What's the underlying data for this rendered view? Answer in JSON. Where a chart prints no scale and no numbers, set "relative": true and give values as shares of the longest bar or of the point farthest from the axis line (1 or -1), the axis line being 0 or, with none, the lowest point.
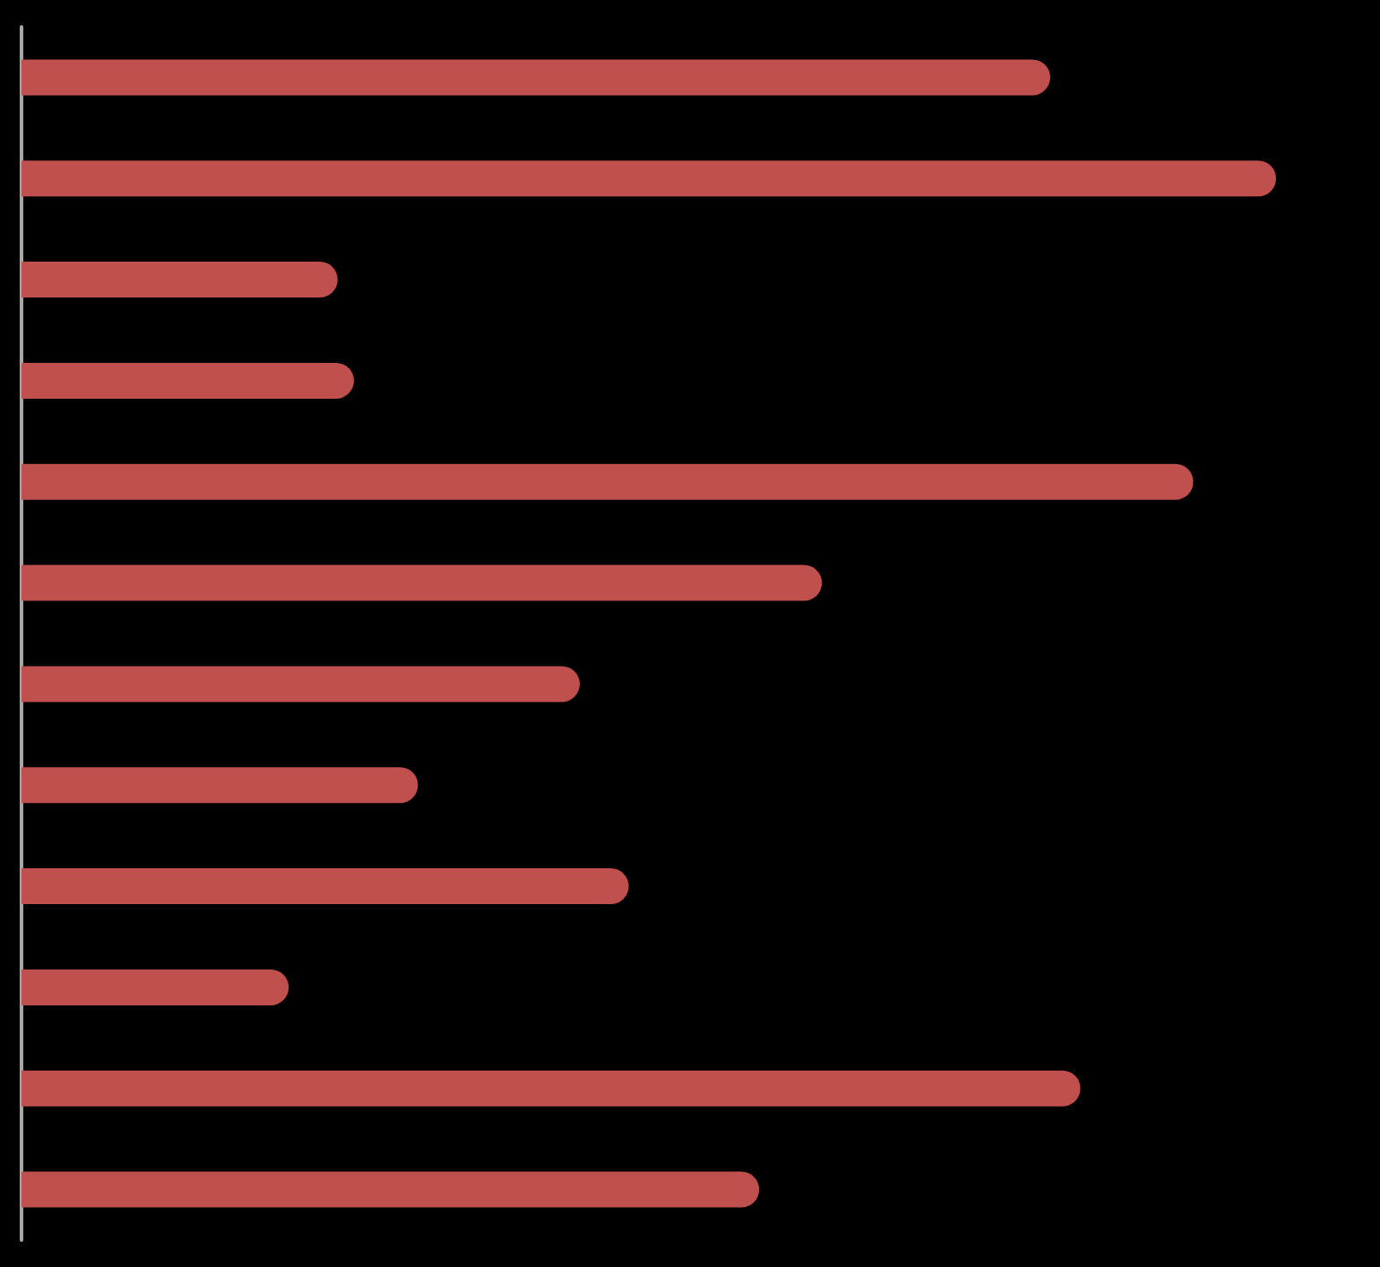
{
  "chart_data": {
    "type": "bar",
    "orientation": "horizontal",
    "relative": true,
    "categories": [
      null,
      null,
      null,
      null,
      null,
      null,
      null,
      null,
      null,
      null,
      null,
      null
    ],
    "series": [
      {
        "color": "#c0504d",
        "values": [
          0.82,
          1,
          0.252,
          0.265,
          0.934,
          0.638,
          0.445,
          0.316,
          0.484,
          0.213,
          0.844,
          0.588
        ]
      }
    ]
  }
}
